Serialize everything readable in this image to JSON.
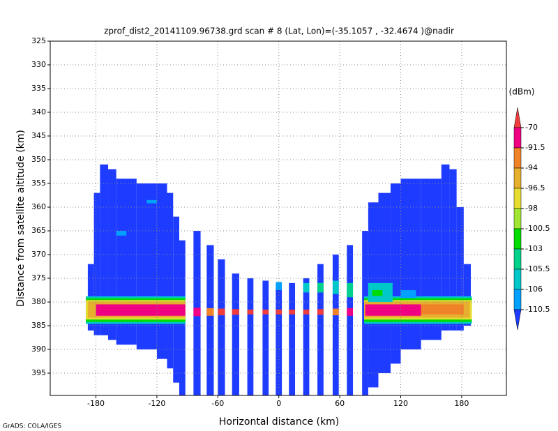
{
  "chart_data": {
    "type": "heatmap",
    "title": "zprof_dist2_20141109.96738.grd  scan # 8  (Lat, Lon)=(-35.1057 , -32.4674 )@nadir",
    "x_label": "Horizontal distance (km)",
    "y_label": "Distance from satellite altitude (km)",
    "xlim": [
      -225,
      224
    ],
    "ylim": [
      325,
      399.7
    ],
    "y_inverted": true,
    "xticks": [
      -180,
      -120,
      -60,
      0,
      60,
      120,
      180
    ],
    "yticks": [
      325,
      330,
      335,
      340,
      345,
      350,
      355,
      360,
      365,
      370,
      375,
      380,
      385,
      390,
      395
    ],
    "grid": true,
    "colorbar": {
      "label": "(dBm)",
      "levels": [
        -70,
        -91.5,
        -94,
        -96.5,
        -98,
        -100.5,
        -103,
        -105.5,
        -106,
        -110.5
      ],
      "colors": [
        "#f03c3c",
        "#f00082",
        "#f08228",
        "#e6af2d",
        "#e6dc32",
        "#a0e632",
        "#00dc00",
        "#00d28c",
        "#00c8c8",
        "#00a0ff",
        "#1e3cff"
      ]
    },
    "cells": [
      {
        "x": [
          -188,
          -182
        ],
        "y": [
          372,
          386
        ],
        "color": "#1e3cff"
      },
      {
        "x": [
          -182,
          -176
        ],
        "y": [
          357,
          387
        ],
        "color": "#1e3cff"
      },
      {
        "x": [
          -176,
          -168
        ],
        "y": [
          351,
          387
        ],
        "color": "#1e3cff"
      },
      {
        "x": [
          -168,
          -160
        ],
        "y": [
          352,
          388
        ],
        "color": "#1e3cff"
      },
      {
        "x": [
          -160,
          -140
        ],
        "y": [
          354,
          389
        ],
        "color": "#1e3cff"
      },
      {
        "x": [
          -140,
          -120
        ],
        "y": [
          355,
          390
        ],
        "color": "#1e3cff"
      },
      {
        "x": [
          -120,
          -110
        ],
        "y": [
          355,
          392
        ],
        "color": "#1e3cff"
      },
      {
        "x": [
          -110,
          -104
        ],
        "y": [
          357,
          394
        ],
        "color": "#1e3cff"
      },
      {
        "x": [
          -104,
          -98
        ],
        "y": [
          362,
          397
        ],
        "color": "#1e3cff"
      },
      {
        "x": [
          -98,
          -92
        ],
        "y": [
          367,
          399.7
        ],
        "color": "#1e3cff"
      },
      {
        "x": [
          -84,
          -77
        ],
        "y": [
          365,
          399.7
        ],
        "color": "#1e3cff"
      },
      {
        "x": [
          -71,
          -64
        ],
        "y": [
          368,
          399.7
        ],
        "color": "#1e3cff"
      },
      {
        "x": [
          -60,
          -53
        ],
        "y": [
          371,
          399.7
        ],
        "color": "#1e3cff"
      },
      {
        "x": [
          -46,
          -39
        ],
        "y": [
          374,
          399.7
        ],
        "color": "#1e3cff"
      },
      {
        "x": [
          -31,
          -25
        ],
        "y": [
          375,
          399.7
        ],
        "color": "#1e3cff"
      },
      {
        "x": [
          -16,
          -10
        ],
        "y": [
          375.5,
          399.7
        ],
        "color": "#1e3cff"
      },
      {
        "x": [
          -3,
          3
        ],
        "y": [
          377,
          399.7
        ],
        "color": "#1e3cff"
      },
      {
        "x": [
          10,
          16
        ],
        "y": [
          376,
          399.7
        ],
        "color": "#1e3cff"
      },
      {
        "x": [
          24,
          30
        ],
        "y": [
          375,
          399.7
        ],
        "color": "#1e3cff"
      },
      {
        "x": [
          38,
          44
        ],
        "y": [
          372,
          399.7
        ],
        "color": "#1e3cff"
      },
      {
        "x": [
          53,
          59
        ],
        "y": [
          370,
          399.7
        ],
        "color": "#1e3cff"
      },
      {
        "x": [
          67,
          73
        ],
        "y": [
          368,
          399.7
        ],
        "color": "#1e3cff"
      },
      {
        "x": [
          82,
          88
        ],
        "y": [
          365,
          399.7
        ],
        "color": "#1e3cff"
      },
      {
        "x": [
          88,
          98
        ],
        "y": [
          359,
          398
        ],
        "color": "#1e3cff"
      },
      {
        "x": [
          98,
          110
        ],
        "y": [
          357,
          395
        ],
        "color": "#1e3cff"
      },
      {
        "x": [
          110,
          120
        ],
        "y": [
          355,
          393
        ],
        "color": "#1e3cff"
      },
      {
        "x": [
          120,
          140
        ],
        "y": [
          354,
          390
        ],
        "color": "#1e3cff"
      },
      {
        "x": [
          140,
          160
        ],
        "y": [
          354,
          388
        ],
        "color": "#1e3cff"
      },
      {
        "x": [
          160,
          168
        ],
        "y": [
          351,
          386
        ],
        "color": "#1e3cff"
      },
      {
        "x": [
          168,
          175
        ],
        "y": [
          352,
          386
        ],
        "color": "#1e3cff"
      },
      {
        "x": [
          175,
          182
        ],
        "y": [
          360,
          386
        ],
        "color": "#1e3cff"
      },
      {
        "x": [
          182,
          189
        ],
        "y": [
          372,
          385
        ],
        "color": "#1e3cff"
      },
      {
        "x": [
          -190,
          -92
        ],
        "y": [
          378.8,
          384.6
        ],
        "color": "#00c8c8"
      },
      {
        "x": [
          -190,
          -92
        ],
        "y": [
          379.2,
          384.2
        ],
        "color": "#00dc00"
      },
      {
        "x": [
          -190,
          -92
        ],
        "y": [
          379.6,
          383.7
        ],
        "color": "#e6dc32"
      },
      {
        "x": [
          -188,
          -92
        ],
        "y": [
          379.9,
          383.3
        ],
        "color": "#e6af2d"
      },
      {
        "x": [
          -180,
          -92
        ],
        "y": [
          380.5,
          382.9
        ],
        "color": "#f00082"
      },
      {
        "x": [
          84,
          190
        ],
        "y": [
          378.8,
          384.6
        ],
        "color": "#00c8c8"
      },
      {
        "x": [
          84,
          190
        ],
        "y": [
          379.2,
          384.2
        ],
        "color": "#00dc00"
      },
      {
        "x": [
          84,
          190
        ],
        "y": [
          379.6,
          383.7
        ],
        "color": "#e6dc32"
      },
      {
        "x": [
          84,
          188
        ],
        "y": [
          379.9,
          383.3
        ],
        "color": "#e6af2d"
      },
      {
        "x": [
          85,
          140
        ],
        "y": [
          380.5,
          382.9
        ],
        "color": "#f00082"
      },
      {
        "x": [
          140,
          182
        ],
        "y": [
          380.5,
          382.6
        ],
        "color": "#f08228"
      },
      {
        "x": [
          -84,
          -77
        ],
        "y": [
          381.2,
          383
        ],
        "color": "#f00082"
      },
      {
        "x": [
          -71,
          -64
        ],
        "y": [
          381.3,
          382.9
        ],
        "color": "#f08228"
      },
      {
        "x": [
          -60,
          -53
        ],
        "y": [
          381.4,
          382.8
        ],
        "color": "#f03c3c"
      },
      {
        "x": [
          -46,
          -39
        ],
        "y": [
          381.5,
          382.7
        ],
        "color": "#f03c3c"
      },
      {
        "x": [
          -31,
          -25
        ],
        "y": [
          381.6,
          382.6
        ],
        "color": "#f03c3c"
      },
      {
        "x": [
          -16,
          -10
        ],
        "y": [
          381.6,
          382.6
        ],
        "color": "#f03c3c"
      },
      {
        "x": [
          -3,
          3
        ],
        "y": [
          381.6,
          382.6
        ],
        "color": "#f03c3c"
      },
      {
        "x": [
          10,
          16
        ],
        "y": [
          381.6,
          382.6
        ],
        "color": "#f03c3c"
      },
      {
        "x": [
          24,
          30
        ],
        "y": [
          381.6,
          382.6
        ],
        "color": "#f03c3c"
      },
      {
        "x": [
          38,
          44
        ],
        "y": [
          381.5,
          382.7
        ],
        "color": "#f03c3c"
      },
      {
        "x": [
          53,
          59
        ],
        "y": [
          381.4,
          382.8
        ],
        "color": "#f08228"
      },
      {
        "x": [
          67,
          73
        ],
        "y": [
          381.3,
          382.9
        ],
        "color": "#f00082"
      },
      {
        "x": [
          -3,
          3
        ],
        "y": [
          375.8,
          377.5
        ],
        "color": "#00a0ff"
      },
      {
        "x": [
          24,
          30
        ],
        "y": [
          376,
          378
        ],
        "color": "#00c8c8"
      },
      {
        "x": [
          38,
          44
        ],
        "y": [
          376,
          378
        ],
        "color": "#00d28c"
      },
      {
        "x": [
          53,
          59
        ],
        "y": [
          375.5,
          378.3
        ],
        "color": "#00c8c8"
      },
      {
        "x": [
          67,
          73
        ],
        "y": [
          376,
          379
        ],
        "color": "#00d28c"
      },
      {
        "x": [
          88,
          112
        ],
        "y": [
          376,
          380
        ],
        "color": "#00c8c8"
      },
      {
        "x": [
          92,
          102
        ],
        "y": [
          377.5,
          378.7
        ],
        "color": "#00dc00"
      },
      {
        "x": [
          120,
          135
        ],
        "y": [
          377.5,
          379.2
        ],
        "color": "#00a0ff"
      },
      {
        "x": [
          -160,
          -150
        ],
        "y": [
          365,
          366
        ],
        "color": "#00a0ff"
      },
      {
        "x": [
          -130,
          -120
        ],
        "y": [
          358.5,
          359.2
        ],
        "color": "#00a0ff"
      }
    ]
  },
  "credit": "GrADS: COLA/IGES"
}
